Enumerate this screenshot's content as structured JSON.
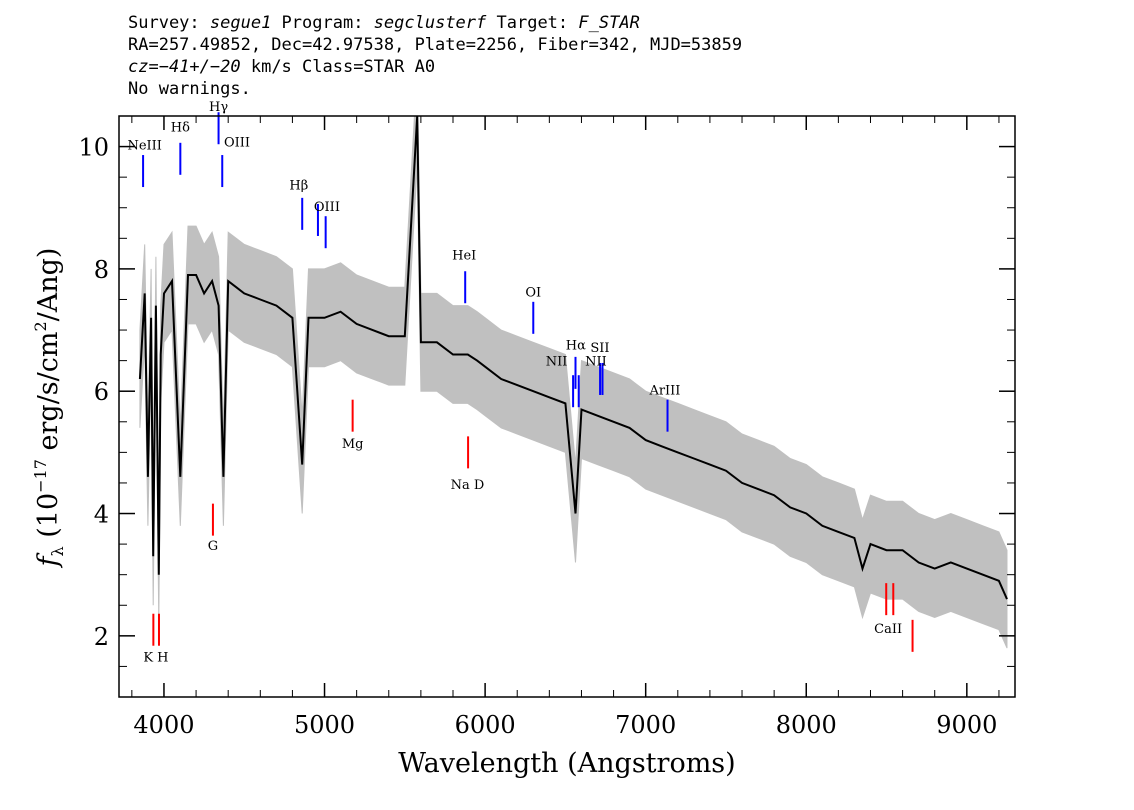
{
  "header": {
    "line1": {
      "survey_label": "Survey: ",
      "survey": "segue1",
      "program_label": " Program: ",
      "program": "segclusterf",
      "target_label": " Target: ",
      "target": "F_STAR"
    },
    "line2": "RA=257.49852, Dec=42.97538, Plate=2256, Fiber=342, MJD=53859",
    "line3": {
      "cz_label": "cz",
      "cz_value": "=−41+/−20",
      "rest": " km/s Class=STAR A0"
    },
    "line4": "No warnings."
  },
  "chart_data": {
    "type": "line",
    "title": "",
    "xlabel": "Wavelength (Angstroms)",
    "ylabel": "f_λ (10^-17 erg/s/cm^2/Ang)",
    "xlim": [
      3720,
      9300
    ],
    "ylim": [
      1.0,
      10.5
    ],
    "x_ticks": [
      4000,
      5000,
      6000,
      7000,
      8000,
      9000
    ],
    "y_ticks": [
      2,
      4,
      6,
      8,
      10
    ],
    "colors": {
      "flux": "#000000",
      "error_band": "#c0c0c0",
      "emission": "#0000ff",
      "absorption": "#ff0000"
    },
    "series": [
      {
        "role": "flux",
        "x": [
          3850,
          3880,
          3900,
          3920,
          3933,
          3950,
          3968,
          3980,
          4000,
          4050,
          4102,
          4150,
          4200,
          4250,
          4300,
          4340,
          4370,
          4400,
          4450,
          4500,
          4600,
          4700,
          4800,
          4861,
          4900,
          5000,
          5100,
          5200,
          5300,
          5400,
          5500,
          5577,
          5600,
          5700,
          5800,
          5892,
          5950,
          6000,
          6100,
          6200,
          6300,
          6400,
          6500,
          6563,
          6600,
          6700,
          6800,
          6900,
          7000,
          7100,
          7200,
          7300,
          7400,
          7500,
          7600,
          7700,
          7800,
          7900,
          8000,
          8100,
          8200,
          8300,
          8350,
          8400,
          8500,
          8600,
          8700,
          8800,
          8900,
          9000,
          9100,
          9200,
          9250
        ],
        "y": [
          6.2,
          7.6,
          4.6,
          7.2,
          3.3,
          7.4,
          3.0,
          6.6,
          7.6,
          7.8,
          4.6,
          7.9,
          7.9,
          7.6,
          7.8,
          7.4,
          4.6,
          7.8,
          7.7,
          7.6,
          7.5,
          7.4,
          7.2,
          4.8,
          7.2,
          7.2,
          7.3,
          7.1,
          7.0,
          6.9,
          6.9,
          10.5,
          6.8,
          6.8,
          6.6,
          6.6,
          6.5,
          6.4,
          6.2,
          6.1,
          6.0,
          5.9,
          5.8,
          4.0,
          5.7,
          5.6,
          5.5,
          5.4,
          5.2,
          5.1,
          5.0,
          4.9,
          4.8,
          4.7,
          4.5,
          4.4,
          4.3,
          4.1,
          4.0,
          3.8,
          3.7,
          3.6,
          3.1,
          3.5,
          3.4,
          3.4,
          3.2,
          3.1,
          3.2,
          3.1,
          3.0,
          2.9,
          2.6
        ]
      }
    ],
    "emission_lines": [
      {
        "label": "NeIII",
        "x": 3870,
        "y": 9.6
      },
      {
        "label": "Hδ",
        "x": 4102,
        "y": 9.8
      },
      {
        "label": "Hγ",
        "x": 4340,
        "y": 10.3
      },
      {
        "label": "OIII",
        "x": 4363,
        "y": 9.6
      },
      {
        "label": "Hβ",
        "x": 4861,
        "y": 8.9
      },
      {
        "label": "OIII",
        "x": 4959,
        "y": 8.8
      },
      {
        "label": "OIII",
        "x": 5007,
        "y": 8.6
      },
      {
        "label": "HeI",
        "x": 5876,
        "y": 7.7
      },
      {
        "label": "OI",
        "x": 6300,
        "y": 7.2
      },
      {
        "label": "NII",
        "x": 6548,
        "y": 6.0
      },
      {
        "label": "Hα",
        "x": 6563,
        "y": 6.3
      },
      {
        "label": "NII",
        "x": 6583,
        "y": 6.0
      },
      {
        "label": "SII",
        "x": 6716,
        "y": 6.2
      },
      {
        "label": "SII",
        "x": 6731,
        "y": 6.2
      },
      {
        "label": "ArIII",
        "x": 7136,
        "y": 5.6
      }
    ],
    "absorption_lines": [
      {
        "label": "K",
        "x": 3934,
        "y": 2.1
      },
      {
        "label": "H",
        "x": 3969,
        "y": 2.1
      },
      {
        "label": "G",
        "x": 4305,
        "y": 3.9
      },
      {
        "label": "Mg",
        "x": 5175,
        "y": 5.6
      },
      {
        "label": "Na D",
        "x": 5894,
        "y": 5.0
      },
      {
        "label": "CaII",
        "x": 8498,
        "y": 2.6
      },
      {
        "label": "CaII",
        "x": 8542,
        "y": 2.6
      },
      {
        "label": "CaII",
        "x": 8662,
        "y": 2.0
      }
    ],
    "line_labels": [
      {
        "text": "NeIII",
        "x": 3880,
        "y": 9.95,
        "color": "#000"
      },
      {
        "text": "Hδ",
        "x": 4102,
        "y": 10.25,
        "color": "#000"
      },
      {
        "text": "Hγ",
        "x": 4340,
        "y": 10.58,
        "color": "#000"
      },
      {
        "text": "OIII",
        "x": 4455,
        "y": 10.0,
        "color": "#000"
      },
      {
        "text": "Hβ",
        "x": 4840,
        "y": 9.3,
        "color": "#000"
      },
      {
        "text": "OIII",
        "x": 5015,
        "y": 8.95,
        "color": "#000"
      },
      {
        "text": "HeI",
        "x": 5870,
        "y": 8.15,
        "color": "#000"
      },
      {
        "text": "OI",
        "x": 6300,
        "y": 7.55,
        "color": "#000"
      },
      {
        "text": "Hα",
        "x": 6565,
        "y": 6.68,
        "color": "#000"
      },
      {
        "text": "NII",
        "x": 6445,
        "y": 6.42,
        "color": "#000"
      },
      {
        "text": "SII",
        "x": 6715,
        "y": 6.64,
        "color": "#000"
      },
      {
        "text": "NII",
        "x": 6690,
        "y": 6.42,
        "color": "#000"
      },
      {
        "text": "ArIII",
        "x": 7120,
        "y": 5.95,
        "color": "#000"
      },
      {
        "text": "Mg",
        "x": 5175,
        "y": 5.07,
        "color": "#000"
      },
      {
        "text": "Na D",
        "x": 5890,
        "y": 4.4,
        "color": "#000"
      },
      {
        "text": "G",
        "x": 4305,
        "y": 3.4,
        "color": "#000"
      },
      {
        "text": "CaII",
        "x": 8510,
        "y": 2.05,
        "color": "#000"
      },
      {
        "text": "K H",
        "x": 3950,
        "y": 1.58,
        "color": "#000"
      }
    ]
  }
}
